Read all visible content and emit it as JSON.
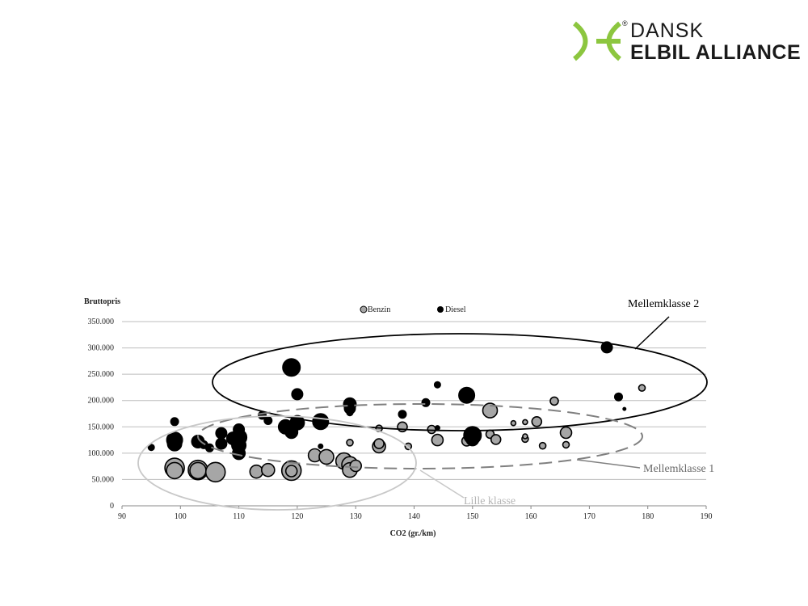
{
  "logo": {
    "line1": "DANSK",
    "line2": "ELBIL ALLIANCE",
    "registered": "®",
    "brand_color": "#8cc63f"
  },
  "chart_data": {
    "type": "scatter",
    "subtype": "bubble",
    "title": "",
    "ylabel": "Bruttopris",
    "xlabel": "CO2 (gr./km)",
    "xlim": [
      90,
      190
    ],
    "ylim": [
      0,
      350000
    ],
    "x_ticks": [
      "90",
      "100",
      "110",
      "120",
      "130",
      "140",
      "150",
      "160",
      "170",
      "180",
      "190"
    ],
    "y_ticks": [
      "0",
      "50.000",
      "100.000",
      "150.000",
      "200.000",
      "250.000",
      "300.000",
      "350.000"
    ],
    "grid": "horizontal",
    "legend_position": "top-center",
    "series": [
      {
        "name": "Benzin",
        "color": "#a6a6a6",
        "points": [
          [
            99,
            72000,
            12
          ],
          [
            99,
            67000,
            10
          ],
          [
            103,
            68000,
            12
          ],
          [
            103,
            67000,
            10
          ],
          [
            106,
            64000,
            12
          ],
          [
            113,
            65000,
            8
          ],
          [
            115,
            68000,
            8
          ],
          [
            119,
            67000,
            12
          ],
          [
            119,
            66000,
            7
          ],
          [
            123,
            96000,
            8
          ],
          [
            125,
            93000,
            9
          ],
          [
            128,
            85000,
            10
          ],
          [
            129,
            78000,
            10
          ],
          [
            129,
            68000,
            9
          ],
          [
            130,
            76000,
            7
          ],
          [
            129,
            120000,
            4
          ],
          [
            134,
            113000,
            8
          ],
          [
            134,
            118000,
            6
          ],
          [
            134,
            147000,
            4
          ],
          [
            138,
            150000,
            6
          ],
          [
            139,
            113000,
            4
          ],
          [
            143,
            145000,
            5
          ],
          [
            144,
            125000,
            7
          ],
          [
            149,
            123000,
            6
          ],
          [
            153,
            136000,
            5
          ],
          [
            154,
            126000,
            6
          ],
          [
            153,
            181000,
            9
          ],
          [
            157,
            157000,
            3
          ],
          [
            159,
            159000,
            3
          ],
          [
            159,
            127000,
            4
          ],
          [
            159,
            132000,
            3
          ],
          [
            161,
            160000,
            6
          ],
          [
            162,
            114000,
            4
          ],
          [
            164,
            199000,
            5
          ],
          [
            166,
            139000,
            7
          ],
          [
            166,
            116000,
            4
          ],
          [
            179,
            224000,
            4
          ]
        ]
      },
      {
        "name": "Diesel",
        "color": "#000000",
        "points": [
          [
            95,
            111000,
            4
          ],
          [
            99,
            160000,
            5
          ],
          [
            99,
            125000,
            10
          ],
          [
            99,
            118000,
            9
          ],
          [
            103,
            122000,
            8
          ],
          [
            104,
            116000,
            5
          ],
          [
            105,
            110000,
            5
          ],
          [
            107,
            138000,
            7
          ],
          [
            107,
            118000,
            7
          ],
          [
            109,
            128000,
            8
          ],
          [
            110,
            145000,
            7
          ],
          [
            110,
            130000,
            10
          ],
          [
            110,
            115000,
            9
          ],
          [
            110,
            100000,
            8
          ],
          [
            114,
            172000,
            5
          ],
          [
            115,
            162000,
            5
          ],
          [
            118,
            150000,
            9
          ],
          [
            119,
            140000,
            8
          ],
          [
            119,
            263000,
            11
          ],
          [
            120,
            158000,
            9
          ],
          [
            120,
            212000,
            7
          ],
          [
            124,
            160000,
            10
          ],
          [
            124,
            113000,
            3
          ],
          [
            129,
            193000,
            8
          ],
          [
            129,
            185000,
            7
          ],
          [
            129,
            177000,
            4
          ],
          [
            138,
            174000,
            5
          ],
          [
            142,
            196000,
            5
          ],
          [
            144,
            230000,
            4
          ],
          [
            144,
            148000,
            3
          ],
          [
            149,
            210000,
            10
          ],
          [
            150,
            134000,
            11
          ],
          [
            150,
            126000,
            8
          ],
          [
            173,
            301000,
            7
          ],
          [
            175,
            207000,
            5
          ],
          [
            176,
            184000,
            2
          ]
        ]
      }
    ],
    "annotations": [
      {
        "label": "Mellemklasse 2",
        "color": "#000000",
        "style": "solid"
      },
      {
        "label": "Mellemklasse 1",
        "color": "#7f7f7f",
        "style": "dashed"
      },
      {
        "label": "Lille klasse",
        "color": "#bfbfbf",
        "style": "solid"
      }
    ]
  }
}
